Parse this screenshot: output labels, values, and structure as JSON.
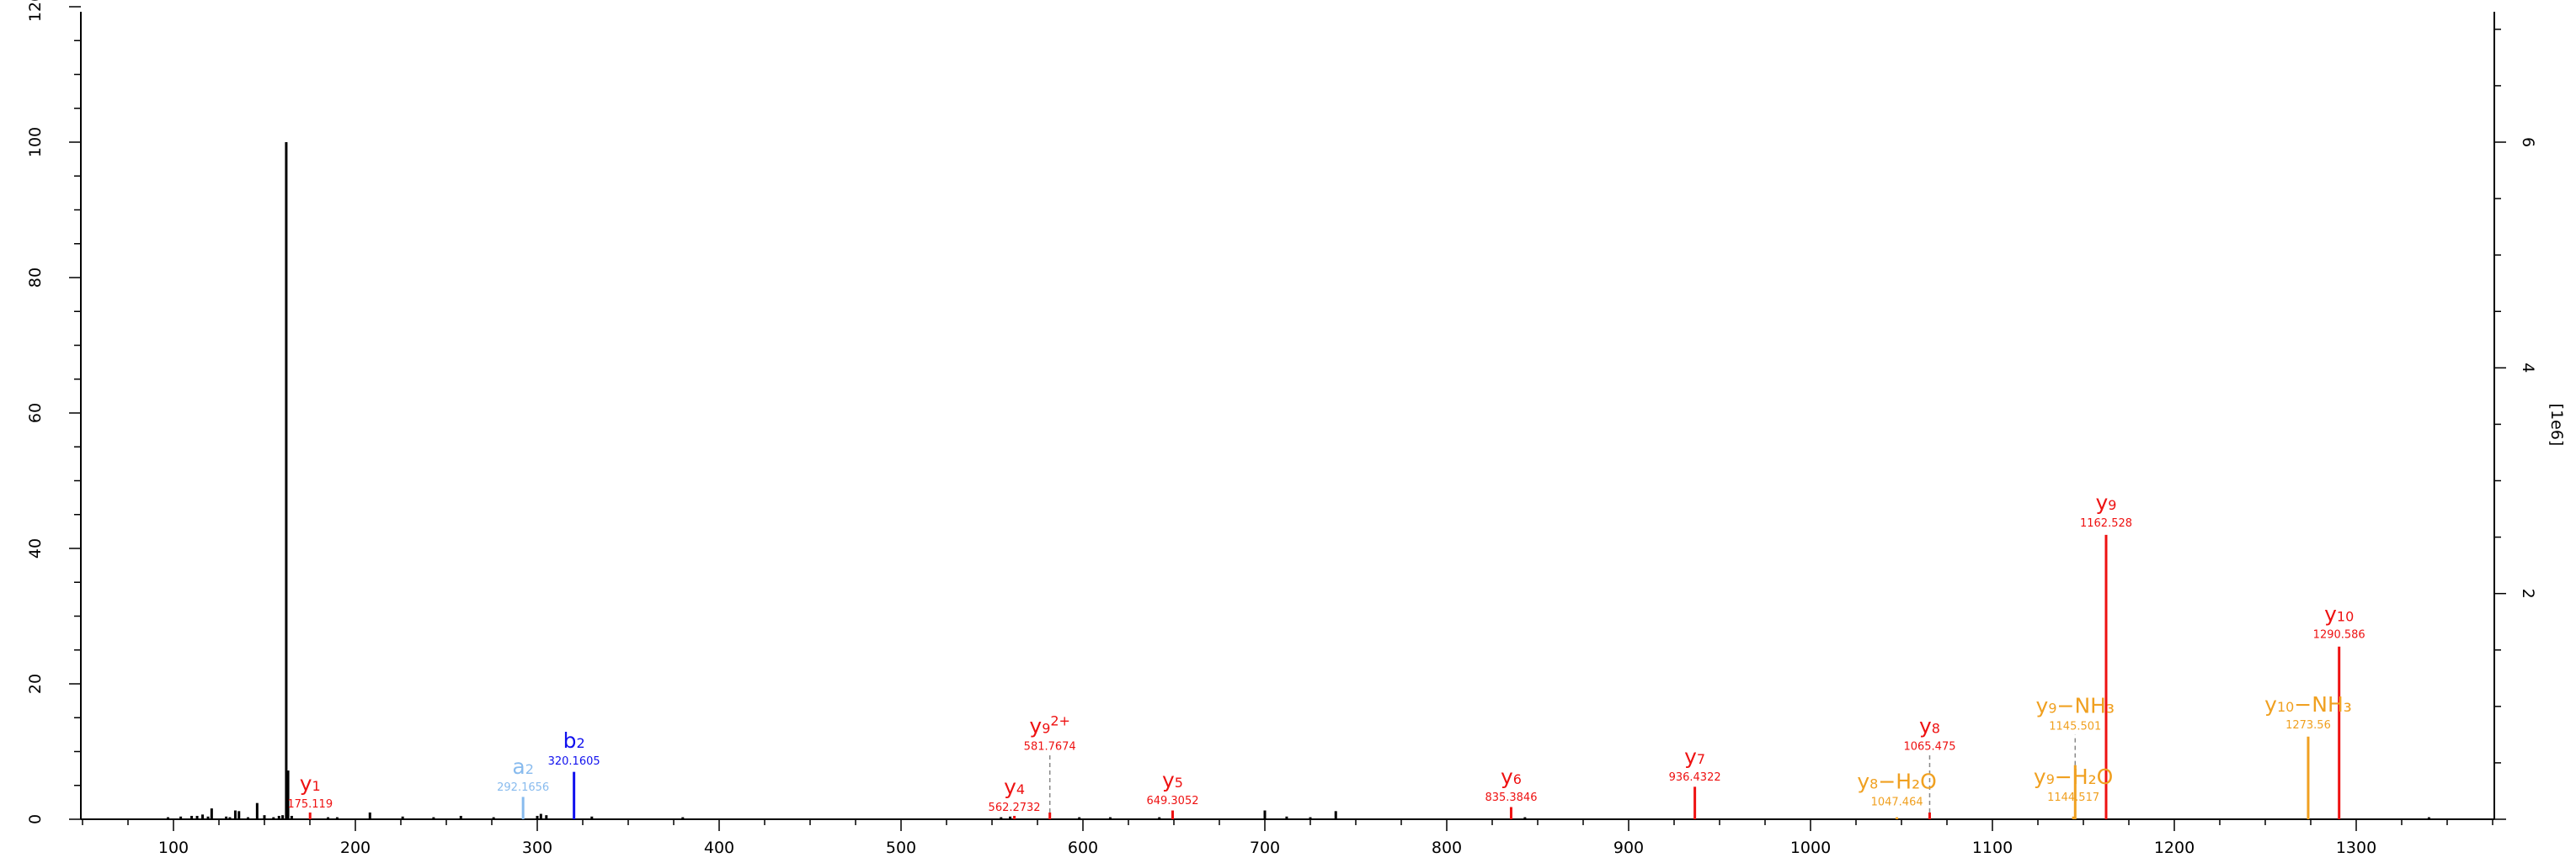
{
  "chart_data": {
    "type": "bar",
    "title": "",
    "xlabel": "",
    "ylabel": "",
    "y2label": "[1e6]",
    "xlim": [
      50,
      1390
    ],
    "ylim": [
      0,
      120
    ],
    "y2lim": [
      0,
      7.2
    ],
    "xticks": [
      100,
      200,
      300,
      400,
      500,
      600,
      700,
      800,
      900,
      1000,
      1100,
      1200,
      1300
    ],
    "yticks": [
      0,
      20,
      40,
      60,
      80,
      100,
      120
    ],
    "y2ticks": [
      2,
      4,
      6
    ],
    "colors": {
      "unassigned": "#000000",
      "y": "#ee1111",
      "b": "#1111ee",
      "a": "#88bbee",
      "neutral_loss": "#f0a020",
      "connector": "#888888"
    },
    "unassigned_peaks": [
      {
        "x": 97,
        "y": 0.3
      },
      {
        "x": 104,
        "y": 0.4
      },
      {
        "x": 110,
        "y": 0.5
      },
      {
        "x": 113,
        "y": 0.5
      },
      {
        "x": 116,
        "y": 0.7
      },
      {
        "x": 119,
        "y": 0.4
      },
      {
        "x": 121,
        "y": 1.6
      },
      {
        "x": 129,
        "y": 0.4
      },
      {
        "x": 131,
        "y": 0.3
      },
      {
        "x": 134,
        "y": 1.3
      },
      {
        "x": 136,
        "y": 1.2
      },
      {
        "x": 141,
        "y": 0.3
      },
      {
        "x": 146,
        "y": 2.4
      },
      {
        "x": 150,
        "y": 0.6
      },
      {
        "x": 155,
        "y": 0.3
      },
      {
        "x": 158,
        "y": 0.5
      },
      {
        "x": 160,
        "y": 0.6
      },
      {
        "x": 162,
        "y": 100
      },
      {
        "x": 163,
        "y": 7.2
      },
      {
        "x": 165,
        "y": 0.5
      },
      {
        "x": 185,
        "y": 0.3
      },
      {
        "x": 190,
        "y": 0.3
      },
      {
        "x": 208,
        "y": 1.0
      },
      {
        "x": 226,
        "y": 0.4
      },
      {
        "x": 243,
        "y": 0.3
      },
      {
        "x": 258,
        "y": 0.5
      },
      {
        "x": 276,
        "y": 0.3
      },
      {
        "x": 300,
        "y": 0.5
      },
      {
        "x": 302,
        "y": 0.8
      },
      {
        "x": 305,
        "y": 0.6
      },
      {
        "x": 330,
        "y": 0.4
      },
      {
        "x": 380,
        "y": 0.3
      },
      {
        "x": 555,
        "y": 0.3
      },
      {
        "x": 560,
        "y": 0.4
      },
      {
        "x": 598,
        "y": 0.3
      },
      {
        "x": 615,
        "y": 0.3
      },
      {
        "x": 642,
        "y": 0.3
      },
      {
        "x": 700,
        "y": 1.3
      },
      {
        "x": 712,
        "y": 0.4
      },
      {
        "x": 725,
        "y": 0.3
      },
      {
        "x": 739,
        "y": 1.2
      },
      {
        "x": 843,
        "y": 0.3
      },
      {
        "x": 1340,
        "y": 0.3
      }
    ],
    "annotated_peaks": [
      {
        "ion_base": "y",
        "ion_sub": "1",
        "ion_sup": "",
        "mz_label": "175.119",
        "x": 175.1,
        "y": 1.0,
        "series": "y",
        "label_y": 1.0,
        "label_dx": 0
      },
      {
        "ion_base": "a",
        "ion_sub": "2",
        "ion_sup": "",
        "mz_label": "292.1656",
        "x": 292.2,
        "y": 3.3,
        "series": "a",
        "label_y": 3.5,
        "label_dx": 0
      },
      {
        "ion_base": "b",
        "ion_sub": "2",
        "ion_sup": "",
        "mz_label": "320.1605",
        "x": 320.2,
        "y": 7.0,
        "series": "b",
        "label_y": 7.3,
        "label_dx": 0
      },
      {
        "ion_base": "y",
        "ion_sub": "4",
        "ion_sup": "",
        "mz_label": "562.2732",
        "x": 562.3,
        "y": 0.5,
        "series": "y",
        "label_y": 0.5,
        "label_dx": 0
      },
      {
        "ion_base": "y",
        "ion_sub": "9",
        "ion_sup": "2+",
        "mz_label": "581.7674",
        "x": 581.8,
        "y": 1.0,
        "series": "y",
        "label_y": 9.5,
        "label_dx": 0,
        "dashed": true
      },
      {
        "ion_base": "y",
        "ion_sub": "5",
        "ion_sup": "",
        "mz_label": "649.3052",
        "x": 649.3,
        "y": 1.3,
        "series": "y",
        "label_y": 1.5,
        "label_dx": 0
      },
      {
        "ion_base": "y",
        "ion_sub": "6",
        "ion_sup": "",
        "mz_label": "835.3846",
        "x": 835.4,
        "y": 1.8,
        "series": "y",
        "label_y": 2.0,
        "label_dx": 0
      },
      {
        "ion_base": "y",
        "ion_sub": "7",
        "ion_sup": "",
        "mz_label": "936.4322",
        "x": 936.4,
        "y": 4.8,
        "series": "y",
        "label_y": 5.0,
        "label_dx": 0
      },
      {
        "ion_base": "y",
        "ion_sub": "8",
        "ion_sup": "",
        "mz_label": "1065.475",
        "x": 1065.5,
        "y": 1.0,
        "series": "y",
        "label_y": 9.5,
        "label_dx": 0,
        "dashed": true
      },
      {
        "ion_base": "y",
        "ion_sub": "8",
        "ion_sup": "−H₂O",
        "mz_label": "1047.464",
        "x": 1047.5,
        "y": 0.3,
        "series": "neutral_loss",
        "label_y": 1.3,
        "label_dx": 0
      },
      {
        "ion_base": "y",
        "ion_sub": "9",
        "ion_sup": "−NH₃",
        "mz_label": "1145.501",
        "x": 1145.5,
        "y": 8.0,
        "series": "neutral_loss",
        "label_y": 12.5,
        "label_dx": 0,
        "dashed": true
      },
      {
        "ion_base": "y",
        "ion_sub": "9",
        "ion_sup": "−H₂O",
        "mz_label": "1144.517",
        "x": 1144.5,
        "y": 0.4,
        "series": "neutral_loss",
        "label_y": 2.0,
        "label_dx": 0
      },
      {
        "ion_base": "y",
        "ion_sub": "9",
        "ion_sup": "",
        "mz_label": "1162.528",
        "x": 1162.5,
        "y": 42,
        "series": "y",
        "label_y": 42.5,
        "label_dx": 0
      },
      {
        "ion_base": "y",
        "ion_sub": "10",
        "ion_sup": "−NH₃",
        "mz_label": "1273.56",
        "x": 1273.6,
        "y": 12.2,
        "series": "neutral_loss",
        "label_y": 12.7,
        "label_dx": 0
      },
      {
        "ion_base": "y",
        "ion_sub": "10",
        "ion_sup": "",
        "mz_label": "1290.586",
        "x": 1290.6,
        "y": 25.5,
        "series": "y",
        "label_y": 26.0,
        "label_dx": 0
      }
    ]
  }
}
